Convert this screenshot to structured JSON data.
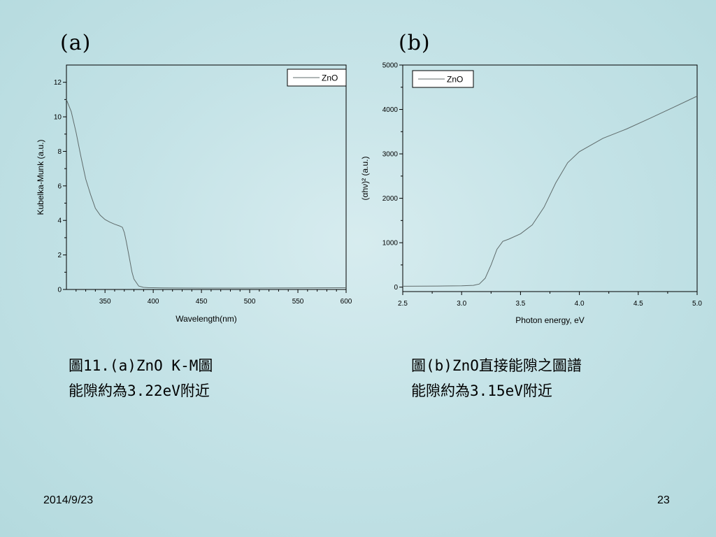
{
  "slide": {
    "panel_a_label": "(a)",
    "panel_b_label": "(b)",
    "caption_a": [
      "圖11.(a)ZnO K-M圖",
      "能隙約為3.22eV附近"
    ],
    "caption_b": [
      "圖(b)ZnO直接能隙之圖譜",
      "能隙約為3.15eV附近"
    ],
    "footer_date": "2014/9/23",
    "footer_page": "23"
  },
  "colors": {
    "line": "#5f6b6b",
    "axis": "#000000",
    "legend_bg": "#ffffff"
  },
  "chart_data": [
    {
      "type": "line",
      "xlabel": "Wavelength(nm)",
      "ylabel": "Kubelka-Munk (a.u.)",
      "xlim": [
        310,
        600
      ],
      "ylim": [
        0,
        13
      ],
      "xticks": [
        350,
        400,
        450,
        500,
        550,
        600
      ],
      "yticks": [
        0,
        2,
        4,
        6,
        8,
        10,
        12
      ],
      "legend": "top-right",
      "grid": false,
      "series": [
        {
          "name": "ZnO",
          "x": [
            310,
            315,
            320,
            325,
            330,
            335,
            340,
            345,
            350,
            355,
            360,
            365,
            368,
            370,
            372,
            375,
            378,
            380,
            385,
            390,
            395,
            400,
            410,
            450,
            500,
            550,
            600
          ],
          "y": [
            11.0,
            10.3,
            9.1,
            7.7,
            6.4,
            5.5,
            4.7,
            4.3,
            4.05,
            3.9,
            3.78,
            3.68,
            3.6,
            3.3,
            2.8,
            1.9,
            1.0,
            0.6,
            0.2,
            0.12,
            0.1,
            0.1,
            0.09,
            0.08,
            0.08,
            0.09,
            0.1
          ]
        }
      ]
    },
    {
      "type": "line",
      "xlabel": "Photon energy, eV",
      "ylabel": "(αhν)² (a.u.)",
      "xlim": [
        2.5,
        5.0
      ],
      "ylim": [
        -100,
        5000
      ],
      "xticks": [
        2.5,
        3.0,
        3.5,
        4.0,
        4.5,
        5.0
      ],
      "yticks": [
        0,
        1000,
        2000,
        3000,
        4000,
        5000
      ],
      "legend": "top-left",
      "grid": false,
      "series": [
        {
          "name": "ZnO",
          "x": [
            2.5,
            2.8,
            3.0,
            3.1,
            3.15,
            3.2,
            3.25,
            3.3,
            3.35,
            3.4,
            3.5,
            3.6,
            3.7,
            3.8,
            3.9,
            4.0,
            4.2,
            4.4,
            4.6,
            4.8,
            5.0
          ],
          "y": [
            20,
            25,
            30,
            40,
            70,
            200,
            500,
            850,
            1030,
            1080,
            1200,
            1400,
            1800,
            2350,
            2800,
            3050,
            3350,
            3560,
            3800,
            4050,
            4300
          ]
        }
      ]
    }
  ]
}
